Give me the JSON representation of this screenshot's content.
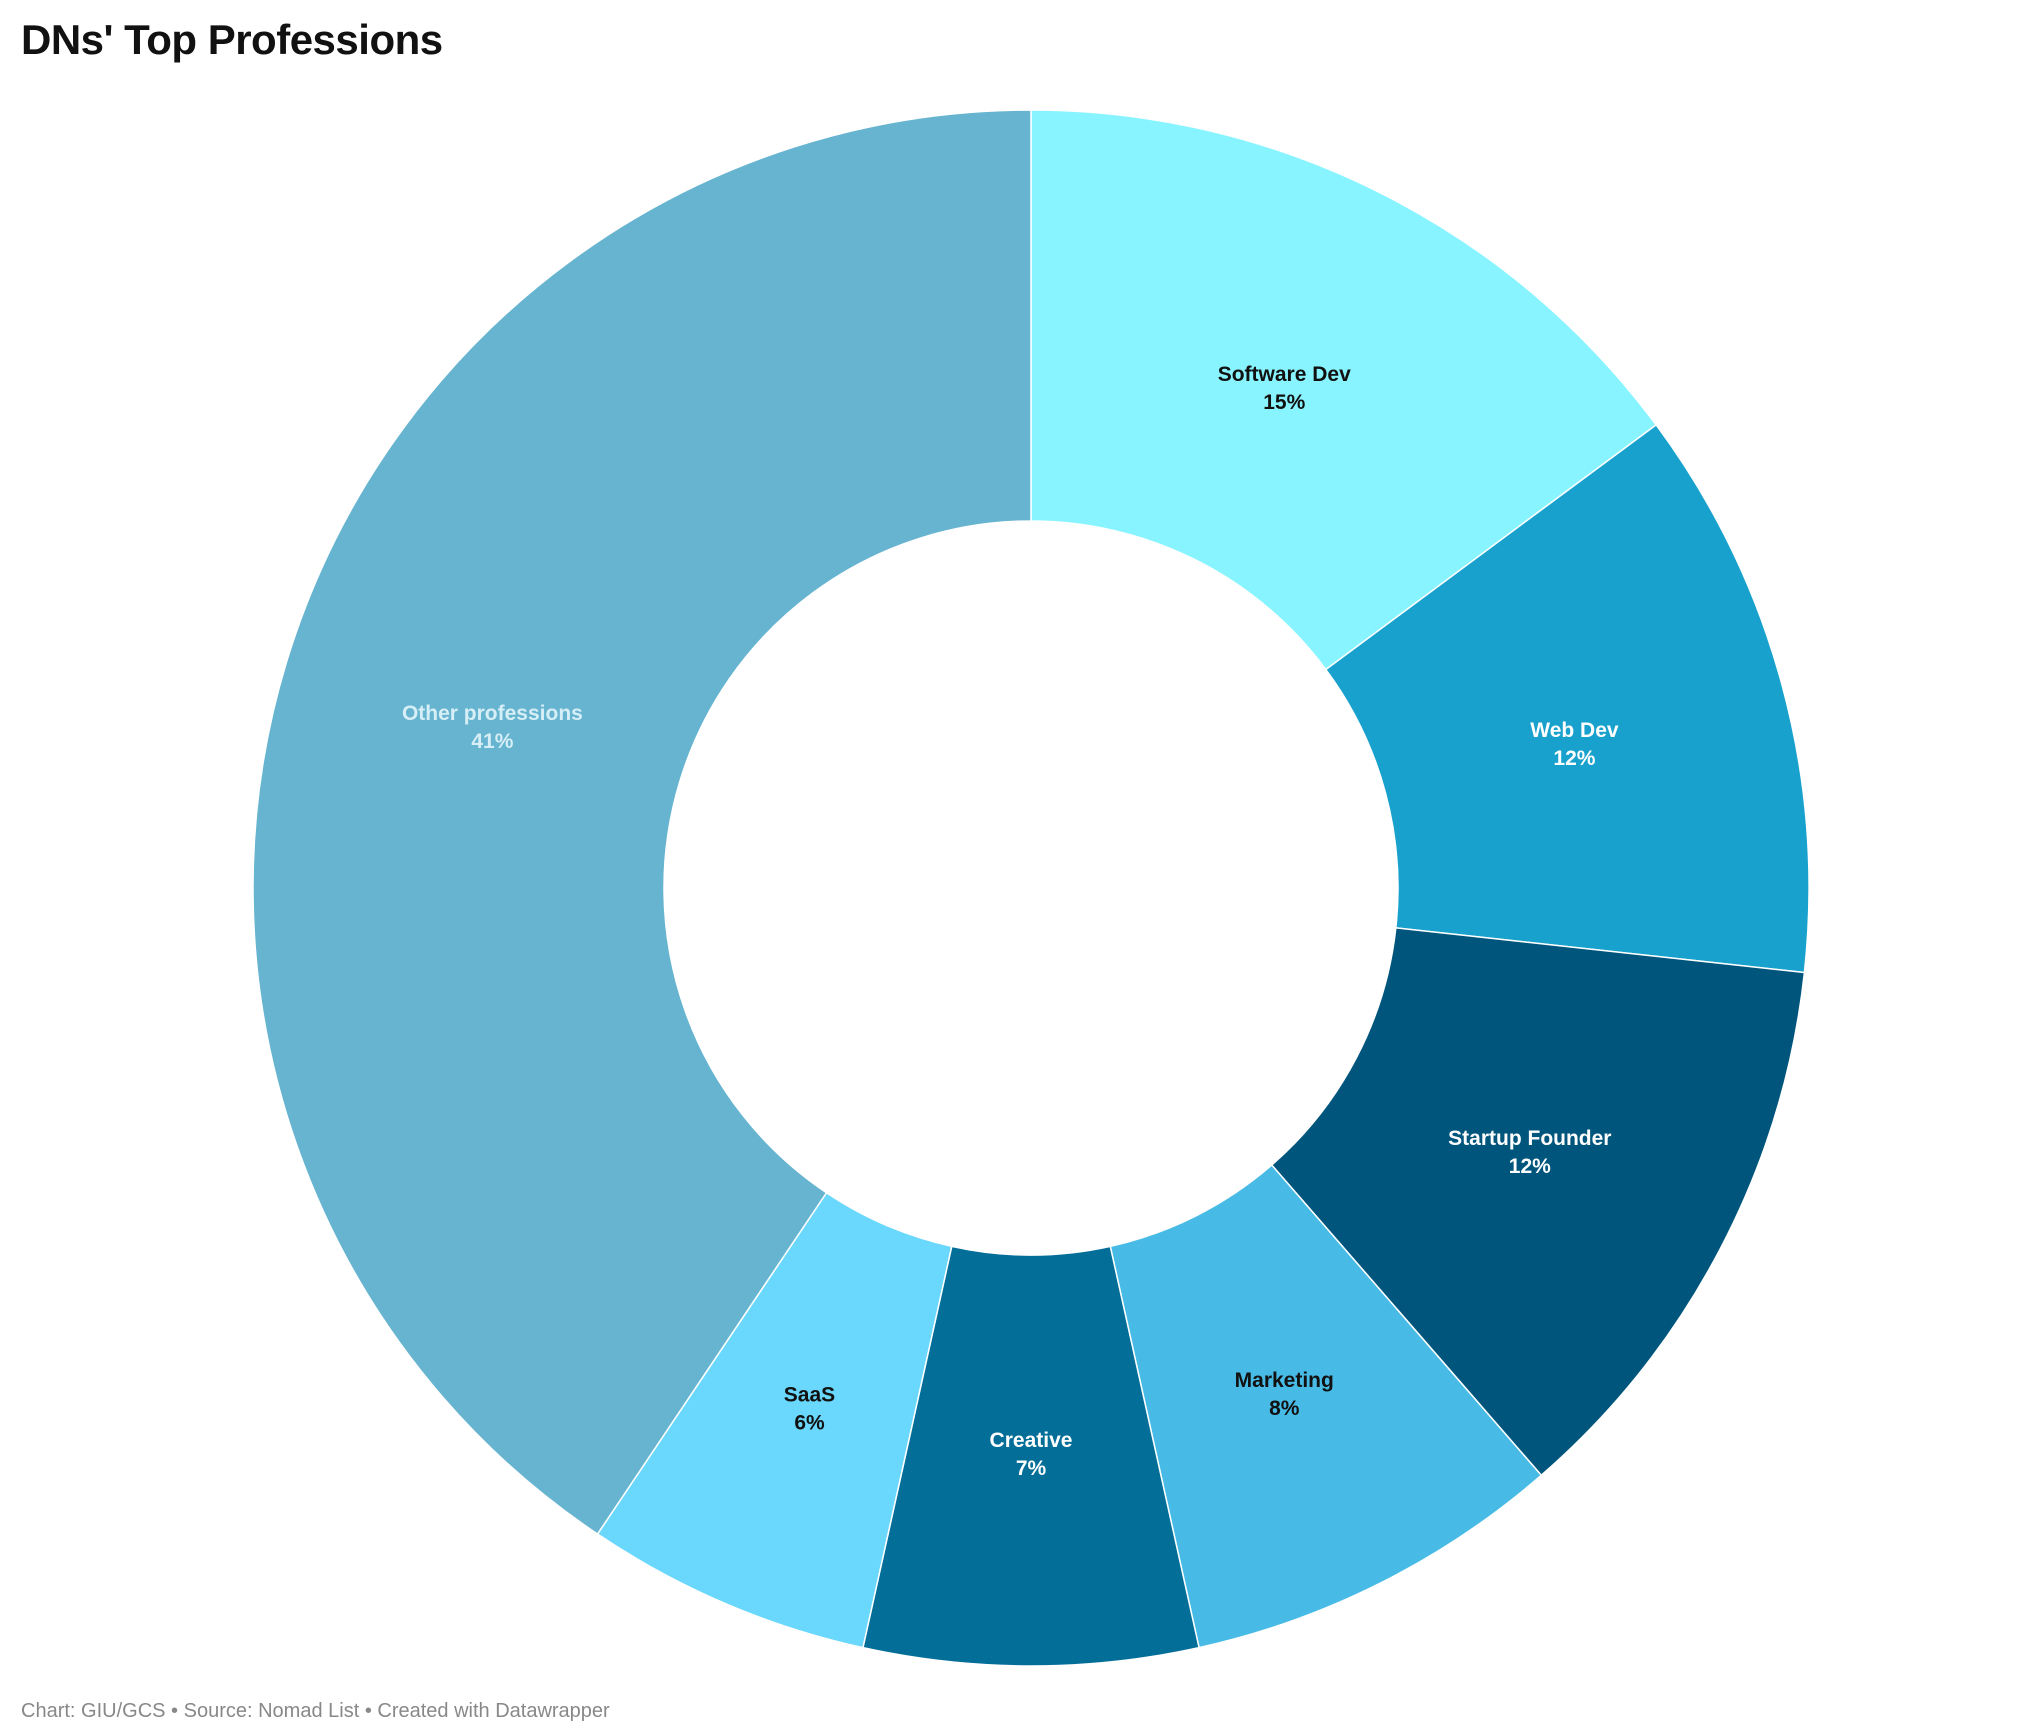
{
  "chart_data": {
    "type": "pie",
    "title": "DNs' Top Professions",
    "categories": [
      "Software Dev",
      "Web Dev",
      "Startup Founder",
      "Marketing",
      "Creative",
      "SaaS",
      "Other professions"
    ],
    "values": [
      15,
      12,
      12,
      8,
      7,
      6,
      41
    ],
    "value_labels": [
      "15%",
      "12%",
      "12%",
      "8%",
      "7%",
      "6%",
      "41%"
    ],
    "colors": [
      "#88f4ff",
      "#19a1cd",
      "#00557c",
      "#47bbe6",
      "#036e98",
      "#69d8fc",
      "#66b4d0"
    ],
    "label_colors": [
      "#111111",
      "#ffffff",
      "#ffffff",
      "#111111",
      "#ffffff",
      "#111111",
      "#d6eef6"
    ],
    "donut": true
  },
  "footer": {
    "chart_credit": "Chart: GIU/GCS",
    "source": "Source: Nomad List",
    "created_with": "Created with Datawrapper"
  }
}
